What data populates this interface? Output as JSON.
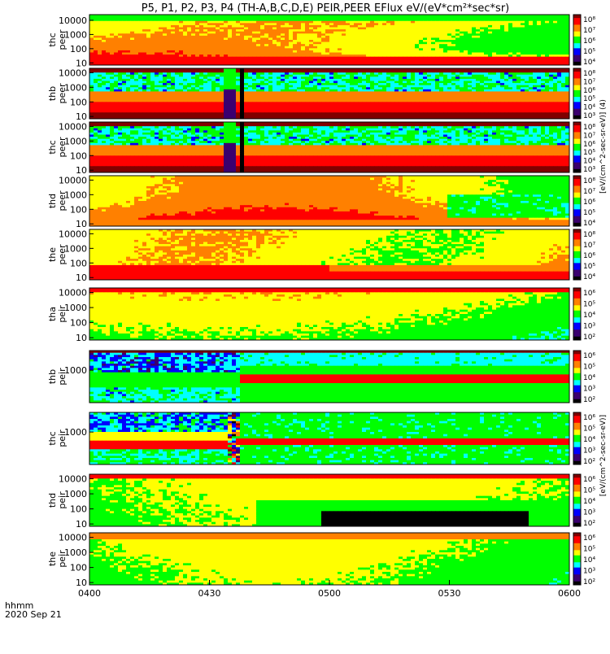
{
  "title": "P5, P1, P2, P3, P4 (TH-A,B,C,D,E) PEIR,PEER EFlux eV/(eV*cm²*sec*sr)",
  "colorbar": {
    "unit_label_eeer": "[eV/(cm^2-sec-sr-eV)] (4)",
    "unit_label_peir": "[eV/(cm^2-sec-sr-eV)]"
  },
  "time_axis": {
    "label_format": "hhmm",
    "date": "2020 Sep 21"
  },
  "chart_data": {
    "type": "heatmap",
    "title": "P5, P1, P2, P3, P4 (TH-A,B,C,D,E) PEIR,PEER EFlux eV/(eV*cm²*sec*sr)",
    "x": {
      "start": "0400",
      "end": "0600",
      "ticks": [
        "0400",
        "0430",
        "0500",
        "0530",
        "0600"
      ],
      "unit": "hhmm"
    },
    "colormap": [
      "#000000",
      "#3b006f",
      "#0000ff",
      "#00ffff",
      "#00ff00",
      "#ffff00",
      "#ff8000",
      "#ff0000",
      "#800000"
    ],
    "panels": [
      {
        "label": [
          "thc",
          "peer"
        ],
        "yscale": "log",
        "ylim": [
          7,
          25000
        ],
        "yticks": [
          "10000",
          "1000",
          "100",
          "10"
        ],
        "cbar_ticks": [
          "10⁸",
          "10⁷",
          "10⁶",
          "10⁵",
          "10⁴"
        ],
        "image": "eeer"
      },
      {
        "label": [
          "thb",
          "peer"
        ],
        "yscale": "log",
        "ylim": [
          7,
          20000
        ],
        "yticks": [
          "10000",
          "1000",
          "100",
          "10"
        ],
        "cbar_ticks": [
          "10⁸",
          "10⁷",
          "10⁶",
          "10⁵",
          "10⁴",
          "10³"
        ],
        "image": "peer_noise"
      },
      {
        "label": [
          "thc",
          "peer"
        ],
        "yscale": "log",
        "ylim": [
          7,
          20000
        ],
        "yticks": [
          "10000",
          "1000",
          "100",
          "10"
        ],
        "cbar_ticks": [
          "10⁸",
          "10⁷",
          "10⁶",
          "10⁵",
          "10⁴",
          "10³"
        ],
        "image": "peer_noise"
      },
      {
        "label": [
          "thd",
          "peer"
        ],
        "yscale": "log",
        "ylim": [
          7,
          20000
        ],
        "yticks": [
          "10000",
          "1000",
          "100",
          "10"
        ],
        "cbar_ticks": [
          "10⁸",
          "10⁷",
          "10⁶",
          "10⁵",
          "10⁴"
        ],
        "image": "peer_thd"
      },
      {
        "label": [
          "the",
          "peer"
        ],
        "yscale": "log",
        "ylim": [
          7,
          20000
        ],
        "yticks": [
          "10000",
          "1000",
          "100",
          "10"
        ],
        "cbar_ticks": [
          "10⁸",
          "10⁷",
          "10⁶",
          "10⁵",
          "10⁴"
        ],
        "image": "peer_the"
      },
      {
        "label": [
          "tha",
          "peir"
        ],
        "yscale": "log",
        "ylim": [
          7,
          20000
        ],
        "yticks": [
          "10000",
          "1000",
          "100",
          "10"
        ],
        "cbar_ticks": [
          "10⁶",
          "10⁵",
          "10⁴",
          "10³",
          "10²"
        ],
        "image": "peir_a"
      },
      {
        "label": [
          "thb",
          "peir"
        ],
        "yscale": "log",
        "ylim": [
          7,
          20000
        ],
        "yticks": [
          "1000"
        ],
        "cbar_ticks": [
          "10⁶",
          "10⁵",
          "10⁴",
          "10³",
          "10²"
        ],
        "image": "peir_b"
      },
      {
        "label": [
          "thc",
          "peir"
        ],
        "yscale": "log",
        "ylim": [
          7,
          20000
        ],
        "yticks": [
          "1000"
        ],
        "cbar_ticks": [
          "10⁶",
          "10⁵",
          "10⁴",
          "10³",
          "10²"
        ],
        "image": "peir_c"
      },
      {
        "label": [
          "thd",
          "peir"
        ],
        "yscale": "log",
        "ylim": [
          7,
          20000
        ],
        "yticks": [
          "10000",
          "1000",
          "100",
          "10"
        ],
        "cbar_ticks": [
          "10⁶",
          "10⁵",
          "10⁴",
          "10³",
          "10²"
        ],
        "image": "peir_d"
      },
      {
        "label": [
          "the",
          "peir"
        ],
        "yscale": "log",
        "ylim": [
          7,
          20000
        ],
        "yticks": [
          "10000",
          "1000",
          "100",
          "10"
        ],
        "cbar_ticks": [
          "10⁶",
          "10⁵",
          "10⁴",
          "10³",
          "10²"
        ],
        "image": "peir_e"
      }
    ]
  }
}
